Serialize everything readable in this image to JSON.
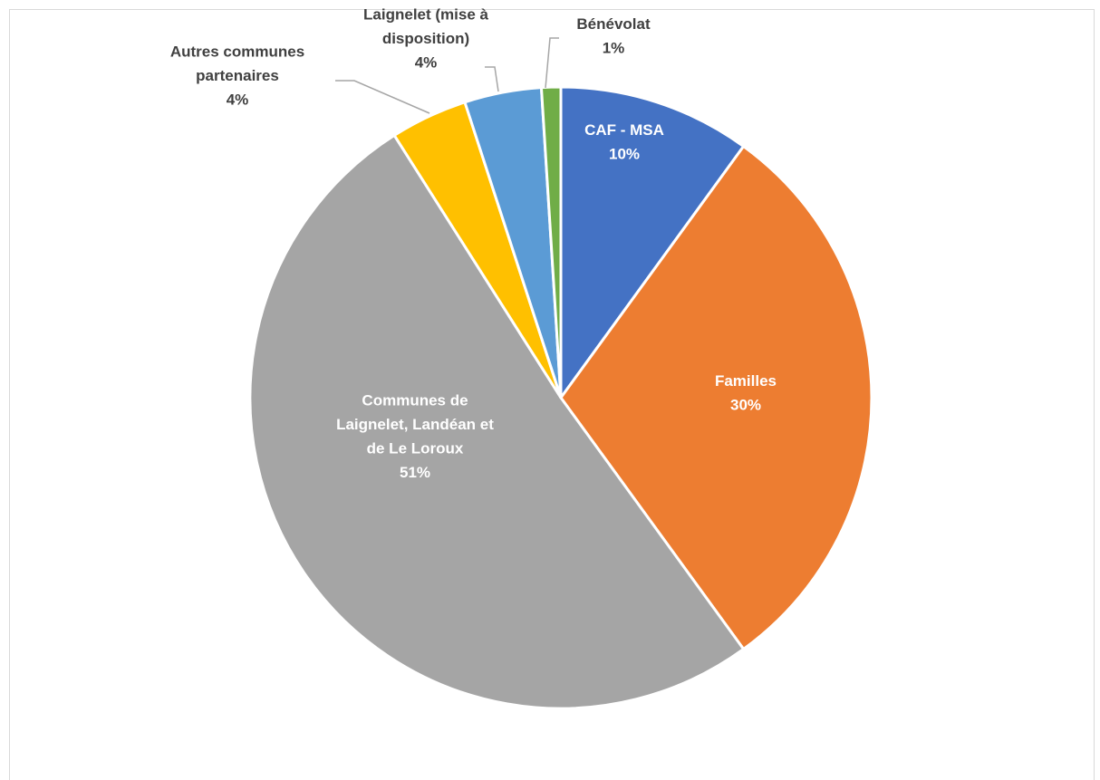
{
  "chart_data": {
    "type": "pie",
    "title": "",
    "slices": [
      {
        "label_lines": [
          "CAF - MSA"
        ],
        "value": 10,
        "pct_label": "10%",
        "color": "#4472C4",
        "label_pos": "inside"
      },
      {
        "label_lines": [
          "Familles"
        ],
        "value": 30,
        "pct_label": "30%",
        "color": "#ED7D31",
        "label_pos": "inside"
      },
      {
        "label_lines": [
          "Communes de",
          "Laignelet, Landéan et",
          "de Le Loroux"
        ],
        "value": 51,
        "pct_label": "51%",
        "color": "#A5A5A5",
        "label_pos": "inside"
      },
      {
        "label_lines": [
          "Autres communes",
          "partenaires"
        ],
        "value": 4,
        "pct_label": "4%",
        "color": "#FFC000",
        "label_pos": "outside"
      },
      {
        "label_lines": [
          "Laignelet (mise à",
          "disposition)"
        ],
        "value": 4,
        "pct_label": "4%",
        "color": "#5B9BD5",
        "label_pos": "outside"
      },
      {
        "label_lines": [
          "Bénévolat"
        ],
        "value": 1,
        "pct_label": "1%",
        "color": "#70AD47",
        "label_pos": "outside"
      }
    ]
  }
}
